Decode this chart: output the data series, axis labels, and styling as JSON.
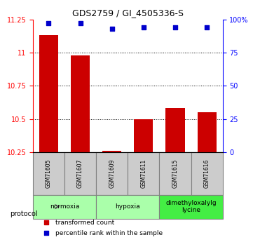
{
  "title": "GDS2759 / GI_4505336-S",
  "samples": [
    "GSM71605",
    "GSM71607",
    "GSM71609",
    "GSM71611",
    "GSM71615",
    "GSM71616"
  ],
  "transformed_counts": [
    11.13,
    10.98,
    10.26,
    10.5,
    10.58,
    10.55
  ],
  "percentile_ranks": [
    97,
    97,
    93,
    94,
    94,
    94
  ],
  "ylim_left": [
    10.25,
    11.25
  ],
  "ylim_right": [
    0,
    100
  ],
  "yticks_left": [
    10.25,
    10.5,
    10.75,
    11.0,
    11.25
  ],
  "yticks_right": [
    0,
    25,
    50,
    75,
    100
  ],
  "ytick_labels_left": [
    "10.25",
    "10.5",
    "10.75",
    "11",
    "11.25"
  ],
  "ytick_labels_right": [
    "0",
    "25",
    "50",
    "75",
    "100%"
  ],
  "bar_color": "#cc0000",
  "dot_color": "#0000cc",
  "groups": [
    {
      "label": "normoxia",
      "samples": [
        "GSM71605",
        "GSM71607"
      ],
      "color": "#aaffaa"
    },
    {
      "label": "hypoxia",
      "samples": [
        "GSM71609",
        "GSM71611"
      ],
      "color": "#aaffaa"
    },
    {
      "label": "dimethyloxalylg\nlycine",
      "samples": [
        "GSM71615",
        "GSM71616"
      ],
      "color": "#44ee44"
    }
  ],
  "protocol_label": "protocol",
  "legend_bar_label": "transformed count",
  "legend_dot_label": "percentile rank within the sample",
  "grid_color": "#000000",
  "background_color": "#ffffff",
  "sample_box_color": "#cccccc"
}
